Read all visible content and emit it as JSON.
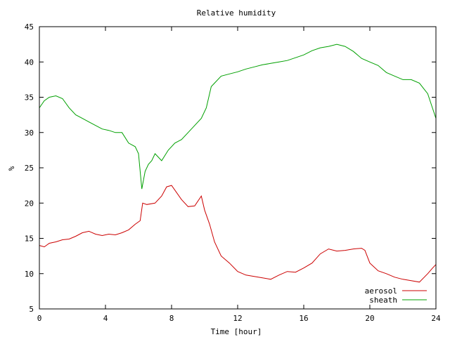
{
  "chart_data": {
    "type": "line",
    "title": "Relative humidity",
    "xlabel": "Time [hour]",
    "ylabel": "%",
    "xlim": [
      0,
      24
    ],
    "ylim": [
      5,
      45
    ],
    "xticks": [
      0,
      4,
      8,
      12,
      16,
      20,
      24
    ],
    "yticks": [
      5,
      10,
      15,
      20,
      25,
      30,
      35,
      40,
      45
    ],
    "grid": false,
    "legend_position": "bottom-right",
    "series": [
      {
        "name": "aerosol",
        "color": "#cc0000",
        "x": [
          0.0,
          0.3,
          0.6,
          1.0,
          1.4,
          1.8,
          2.2,
          2.6,
          3.0,
          3.4,
          3.8,
          4.2,
          4.6,
          5.0,
          5.4,
          5.8,
          6.1,
          6.25,
          6.5,
          7.0,
          7.4,
          7.7,
          8.0,
          8.3,
          8.6,
          9.0,
          9.4,
          9.8,
          10.0,
          10.3,
          10.6,
          11.0,
          11.5,
          12.0,
          12.5,
          13.0,
          13.5,
          14.0,
          14.5,
          15.0,
          15.5,
          16.0,
          16.5,
          17.0,
          17.5,
          18.0,
          18.5,
          19.0,
          19.5,
          19.7,
          20.0,
          20.5,
          21.0,
          21.5,
          22.0,
          22.5,
          23.0,
          23.5,
          23.8,
          24.0
        ],
        "y": [
          14.0,
          13.8,
          14.3,
          14.5,
          14.8,
          14.9,
          15.3,
          15.8,
          16.0,
          15.6,
          15.4,
          15.6,
          15.5,
          15.8,
          16.2,
          17.0,
          17.5,
          20.0,
          19.8,
          20.0,
          21.0,
          22.3,
          22.5,
          21.5,
          20.5,
          19.5,
          19.6,
          21.0,
          19.0,
          17.0,
          14.5,
          12.5,
          11.5,
          10.3,
          9.8,
          9.6,
          9.4,
          9.2,
          9.8,
          10.3,
          10.2,
          10.8,
          11.5,
          12.8,
          13.5,
          13.2,
          13.3,
          13.5,
          13.6,
          13.3,
          11.5,
          10.4,
          10.0,
          9.5,
          9.2,
          9.0,
          8.8,
          10.0,
          10.8,
          11.3
        ]
      },
      {
        "name": "sheath",
        "color": "#00a000",
        "x": [
          0.0,
          0.3,
          0.6,
          1.0,
          1.4,
          1.8,
          2.2,
          2.6,
          3.0,
          3.4,
          3.8,
          4.2,
          4.6,
          5.0,
          5.4,
          5.8,
          6.0,
          6.2,
          6.4,
          6.6,
          6.8,
          7.0,
          7.4,
          7.8,
          8.2,
          8.6,
          9.0,
          9.4,
          9.8,
          10.1,
          10.4,
          10.6,
          11.0,
          11.5,
          12.0,
          12.5,
          13.0,
          13.5,
          14.0,
          14.5,
          15.0,
          15.5,
          16.0,
          16.5,
          17.0,
          17.5,
          18.0,
          18.5,
          19.0,
          19.5,
          20.0,
          20.5,
          21.0,
          21.5,
          22.0,
          22.5,
          23.0,
          23.5,
          24.0
        ],
        "y": [
          33.5,
          34.5,
          35.0,
          35.2,
          34.8,
          33.5,
          32.5,
          32.0,
          31.5,
          31.0,
          30.5,
          30.3,
          30.0,
          30.0,
          28.5,
          28.0,
          27.0,
          22.0,
          24.5,
          25.5,
          26.0,
          27.0,
          26.0,
          27.5,
          28.5,
          29.0,
          30.0,
          31.0,
          32.0,
          33.5,
          36.5,
          37.0,
          38.0,
          38.3,
          38.6,
          39.0,
          39.3,
          39.6,
          39.8,
          40.0,
          40.2,
          40.6,
          41.0,
          41.6,
          42.0,
          42.2,
          42.5,
          42.2,
          41.5,
          40.5,
          40.0,
          39.5,
          38.5,
          38.0,
          37.5,
          37.5,
          37.0,
          35.5,
          32.0
        ]
      }
    ]
  }
}
